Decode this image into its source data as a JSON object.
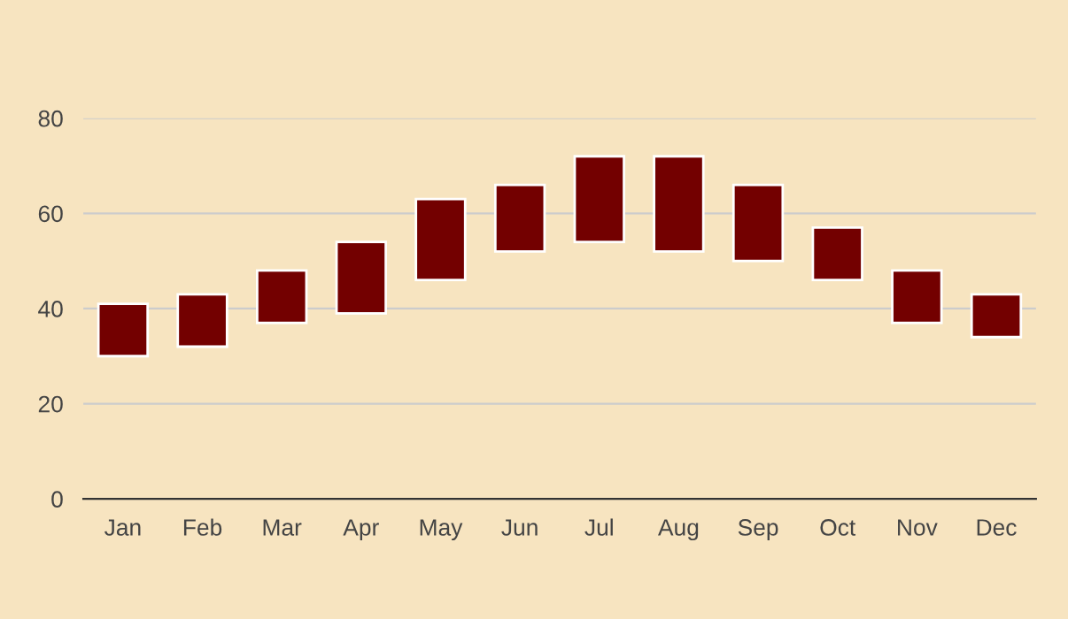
{
  "chart_data": {
    "type": "bar",
    "categories": [
      "Jan",
      "Feb",
      "Mar",
      "Apr",
      "May",
      "Jun",
      "Jul",
      "Aug",
      "Sep",
      "Oct",
      "Nov",
      "Dec"
    ],
    "base": [
      30,
      32,
      37,
      39,
      46,
      52,
      54,
      52,
      50,
      46,
      37,
      34
    ],
    "values": [
      11,
      11,
      11,
      15,
      17,
      14,
      18,
      20,
      16,
      11,
      11,
      9
    ],
    "color": "#730000",
    "ylim": [
      0,
      80
    ],
    "yticks": [
      0,
      20,
      40,
      60,
      80
    ],
    "grid": "y",
    "legend": false
  }
}
